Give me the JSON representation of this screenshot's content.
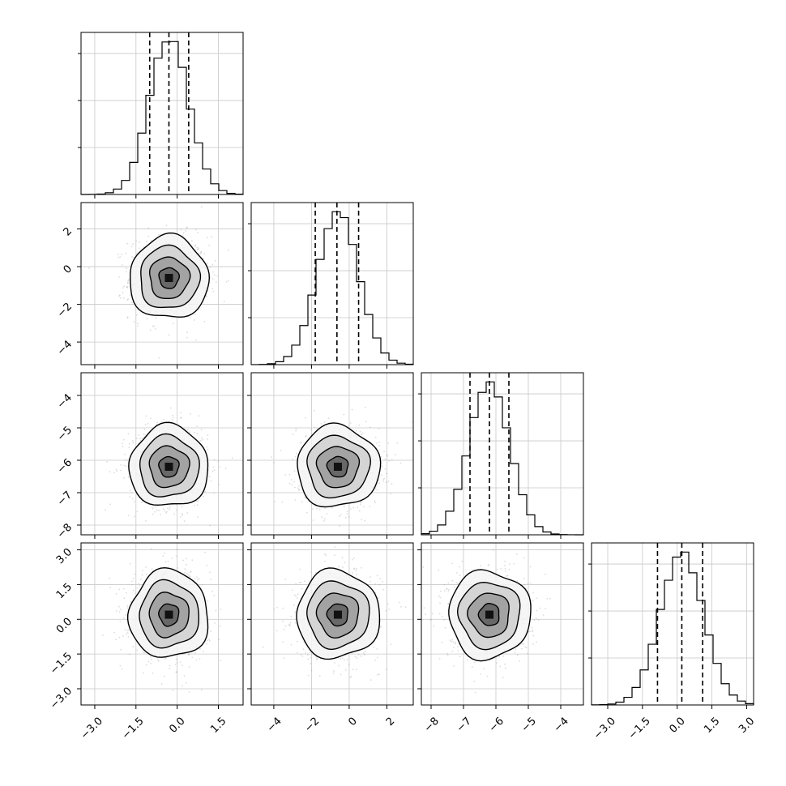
{
  "chart_data": {
    "type": "corner",
    "parameters": [
      {
        "index": 0,
        "range": [
          -3.5,
          2.4
        ],
        "ticks": [
          -3.0,
          -1.5,
          0.0,
          1.5
        ],
        "tick_labels": [
          "−3.0",
          "−1.5",
          "0.0",
          "1.5"
        ],
        "mean": -0.3,
        "sigma": 0.72,
        "quantiles": [
          -1.0,
          -0.3,
          0.42
        ]
      },
      {
        "index": 1,
        "range": [
          -5.2,
          3.4
        ],
        "ticks": [
          -4,
          -2,
          0,
          2
        ],
        "tick_labels": [
          "−4",
          "−2",
          "0",
          "2"
        ],
        "mean": -0.6,
        "sigma": 1.1,
        "quantiles": [
          -1.8,
          -0.65,
          0.5
        ]
      },
      {
        "index": 2,
        "range": [
          -8.3,
          -3.3
        ],
        "ticks": [
          -8,
          -7,
          -6,
          -5,
          -4
        ],
        "tick_labels": [
          "−8",
          "−7",
          "−6",
          "−5",
          "−4"
        ],
        "mean": -6.2,
        "sigma": 0.63,
        "quantiles": [
          -6.8,
          -6.2,
          -5.6
        ]
      },
      {
        "index": 3,
        "range": [
          -3.7,
          3.3
        ],
        "ticks": [
          -3.0,
          -1.5,
          0.0,
          1.5,
          3.0
        ],
        "tick_labels": [
          "−3.0",
          "−1.5",
          "0.0",
          "1.5",
          "3.0"
        ],
        "mean": 0.2,
        "sigma": 0.95,
        "quantiles": [
          -0.85,
          0.2,
          1.1
        ]
      }
    ],
    "histogram_bins": 20,
    "contour_levels": [
      "0.5σ",
      "1σ",
      "1.5σ",
      "2σ"
    ],
    "grid": true,
    "colors": {
      "line": "#000000",
      "scatter": "#9a9a9a",
      "grid": "#c8c8c8"
    }
  }
}
